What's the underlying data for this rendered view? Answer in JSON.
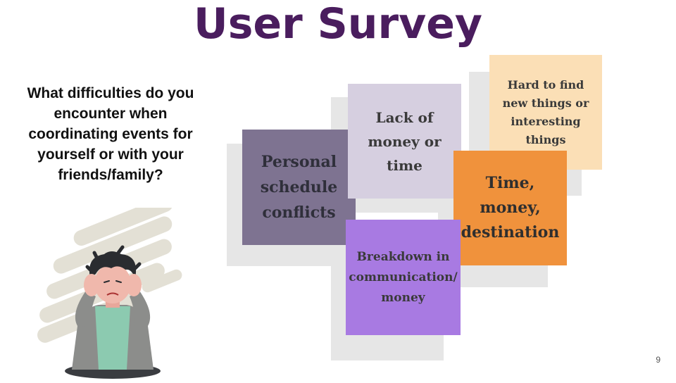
{
  "title": "User Survey",
  "question": "What difficulties do you encounter when coordinating events for yourself or with your friends/family?",
  "notes": [
    {
      "text": "Personal schedule conflicts",
      "color": "#7e7391"
    },
    {
      "text": "Lack of money or time",
      "color": "#d6cfe0"
    },
    {
      "text": "Hard to find new things or interesting things",
      "color": "#fbdfb6"
    },
    {
      "text": "Time, money, destination",
      "color": "#f0923c"
    },
    {
      "text": "Breakdown in communication/ money",
      "color": "#a87ae2"
    }
  ],
  "page_number": "9",
  "colors": {
    "title": "#4a1d5e",
    "note_shadow": "#e6e6e6",
    "scribble_bg": "#e3e0d5"
  },
  "illustration": {
    "icon": "stressed-person-icon"
  }
}
